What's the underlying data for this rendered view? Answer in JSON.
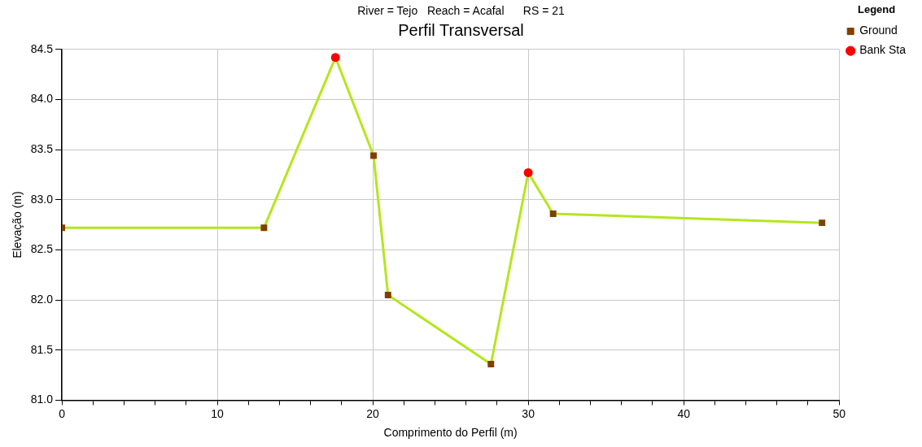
{
  "chart_data": {
    "type": "line",
    "subtitle": "River = Tejo   Reach = Acafal      RS = 21",
    "title": "Perfil Transversal",
    "xlabel": "Comprimento do Perfil (m)",
    "ylabel": "Elevação (m)",
    "legend_title": "Legend",
    "x": [
      0,
      13.0,
      17.6,
      20.05,
      20.98,
      27.6,
      30.0,
      31.6,
      48.9
    ],
    "series": [
      {
        "name": "Ground",
        "color": "#b5e61d",
        "marker": "square",
        "colors": [
          "#804000",
          "#804000",
          "#804000",
          "#804000",
          "#804000",
          "#804000",
          "#804000",
          "#804000",
          "#804000"
        ],
        "values": [
          82.72,
          82.72,
          84.42,
          83.44,
          82.05,
          81.36,
          83.27,
          82.86,
          82.77
        ]
      },
      {
        "name": "Bank Sta",
        "type": "scatter",
        "color": "#ff0000",
        "marker": "circle",
        "x": [
          17.6,
          30.0
        ],
        "values": [
          84.42,
          83.27
        ]
      }
    ],
    "xlim": [
      0,
      50
    ],
    "xticks": [
      0,
      {
        "value": 2,
        "label": null
      },
      {
        "value": 4,
        "label": null
      },
      {
        "value": 6,
        "label": null
      },
      {
        "value": 8,
        "label": null
      },
      10,
      {
        "value": 12,
        "label": null
      },
      {
        "value": 14,
        "label": null
      },
      {
        "value": 16,
        "label": null
      },
      {
        "value": 18,
        "label": null
      },
      20,
      {
        "value": 22,
        "label": null
      },
      {
        "value": 24,
        "label": null
      },
      {
        "value": 26,
        "label": null
      },
      {
        "value": 28,
        "label": null
      },
      30,
      {
        "value": 32,
        "label": null
      },
      {
        "value": 34,
        "label": null
      },
      {
        "value": 36,
        "label": null
      },
      {
        "value": 38,
        "label": null
      },
      40,
      {
        "value": 42,
        "label": null
      },
      {
        "value": 44,
        "label": null
      },
      {
        "value": 46,
        "label": null
      },
      {
        "value": 48,
        "label": null
      },
      50
    ],
    "ylim": [
      81.0,
      84.5
    ],
    "yticks": [
      {
        "value": 81.0,
        "label": "81.0"
      },
      {
        "value": 81.5,
        "label": "81.5"
      },
      {
        "value": 82.0,
        "label": "82.0"
      },
      {
        "value": 82.5,
        "label": "82.5"
      },
      {
        "value": 83.0,
        "label": "83.0"
      },
      {
        "value": 83.5,
        "label": "83.5"
      },
      {
        "value": 84.0,
        "label": "84.0"
      },
      {
        "value": 84.5,
        "label": "84.5"
      }
    ],
    "grid": true,
    "legend": "right"
  }
}
